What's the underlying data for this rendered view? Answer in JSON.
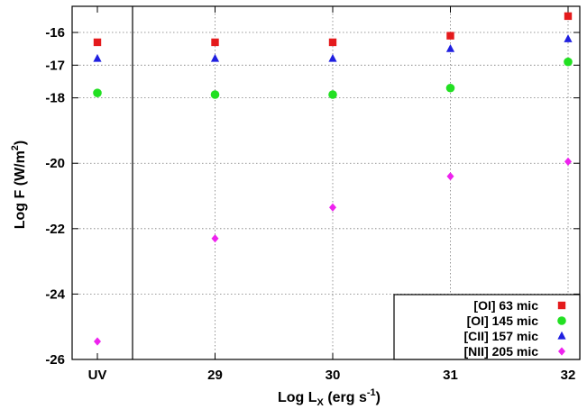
{
  "chart_data": {
    "type": "scatter",
    "xlabel": {
      "main": "Log L",
      "sub": "X",
      "rest": " (erg s",
      "sup": "-1",
      "end": ")"
    },
    "ylabel": {
      "main": "Log F (W/m",
      "sup": "2",
      "end": ")"
    },
    "categories": [
      "UV",
      "29",
      "30",
      "31",
      "32"
    ],
    "ylim": [
      -26,
      -15.2
    ],
    "yticks": [
      -16,
      -17,
      -18,
      -20,
      -22,
      -24,
      -26
    ],
    "grid": true,
    "legend_position": "bottom-right",
    "series": [
      {
        "name": "[OI] 63 mic",
        "marker": "square",
        "color": "#e41a1c",
        "values": [
          -16.3,
          -16.3,
          -16.3,
          -16.1,
          -15.5
        ]
      },
      {
        "name": "[OI] 145 mic",
        "marker": "circle",
        "color": "#22e022",
        "values": [
          -17.85,
          -17.9,
          -17.9,
          -17.7,
          -16.9
        ]
      },
      {
        "name": "[CII] 157 mic",
        "marker": "triangle",
        "color": "#1f1fe0",
        "values": [
          -16.8,
          -16.8,
          -16.8,
          -16.5,
          -16.2
        ]
      },
      {
        "name": "[NII] 205 mic",
        "marker": "diamond",
        "color": "#ee22ee",
        "values": [
          -25.45,
          -22.3,
          -21.35,
          -20.4,
          -19.95
        ]
      }
    ]
  }
}
